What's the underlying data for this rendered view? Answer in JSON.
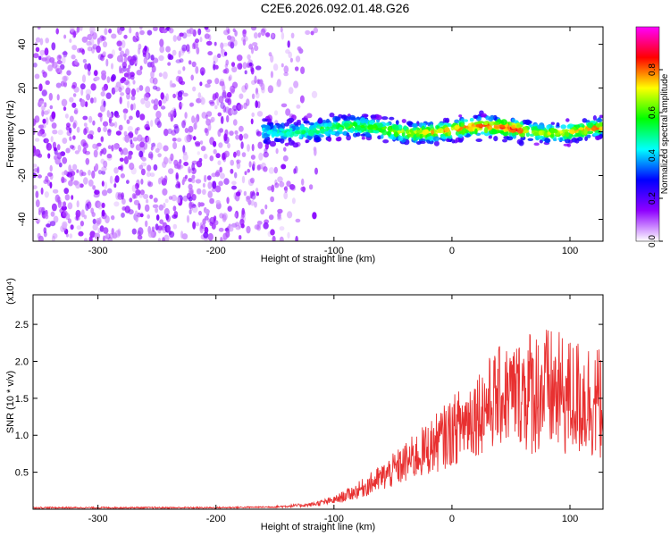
{
  "title": "C2E6.2026.092.01.48.G26",
  "colors": {
    "snr_line": "#e83030",
    "axis": "#000000",
    "background": "#ffffff"
  },
  "chart_data": [
    {
      "type": "heatmap",
      "name": "spectrogram",
      "xlabel": "Height of straight line (km)",
      "ylabel": "Frequency (Hz)",
      "xlim": [
        -355,
        128
      ],
      "ylim": [
        -50,
        48
      ],
      "x_ticks": [
        -300,
        -200,
        -100,
        0,
        100
      ],
      "y_ticks": [
        -40,
        -20,
        0,
        20,
        40
      ],
      "noise_region_x": [
        -355,
        -140
      ],
      "signal_band": {
        "x_range": [
          -160,
          128
        ],
        "center_freq_hz": 1,
        "half_width_hz": 5
      },
      "colorbar": {
        "label": "Normalized spectral amplitude",
        "range": [
          0.0,
          1.0
        ],
        "ticks": [
          0.0,
          0.2,
          0.4,
          0.6,
          0.8
        ],
        "tick_labels": [
          "0.0",
          "0.2",
          "0.4",
          "0.6",
          "0.8"
        ],
        "colormap": [
          "#ffffff",
          "#8f00ff",
          "#0000ff",
          "#00ffff",
          "#00ff00",
          "#ffff00",
          "#ff0000",
          "#ff00ff"
        ]
      }
    },
    {
      "type": "line",
      "name": "snr",
      "xlabel": "Height of straight line (km)",
      "ylabel": "SNR (10 * v/v)",
      "y_multiplier": "(x10⁴)",
      "xlim": [
        -355,
        128
      ],
      "ylim": [
        0,
        2.9
      ],
      "x_ticks": [
        -300,
        -200,
        -100,
        0,
        100
      ],
      "y_ticks": [
        0.5,
        1.0,
        1.5,
        2.0,
        2.5
      ],
      "y_tick_labels": [
        "0.5",
        "1.0",
        "1.5",
        "2.0",
        "2.5"
      ],
      "series": [
        {
          "name": "SNR",
          "x": [
            -355,
            -300,
            -250,
            -200,
            -150,
            -120,
            -100,
            -80,
            -60,
            -40,
            -20,
            0,
            20,
            40,
            60,
            80,
            100,
            115,
            128
          ],
          "values": [
            0.02,
            0.02,
            0.02,
            0.02,
            0.03,
            0.06,
            0.12,
            0.25,
            0.42,
            0.62,
            0.82,
            1.05,
            1.3,
            1.52,
            1.6,
            1.6,
            1.5,
            1.5,
            1.4
          ]
        }
      ]
    }
  ]
}
